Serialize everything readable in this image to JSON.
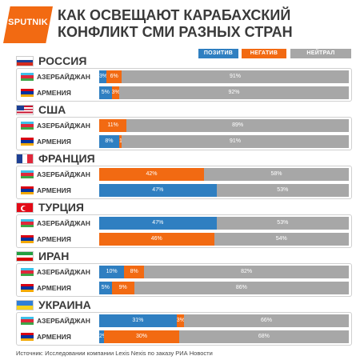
{
  "logo_text": "SPUTNIK",
  "title_line1": "КАК ОСВЕЩАЮТ КАРАБАХСКИЙ",
  "title_line2": "КОНФЛИКТ СМИ РАЗНЫХ СТРАН",
  "source": "Источник: Исследовании компании Lexis Nexis по заказу РИА Новости",
  "colors": {
    "positive": "#2f7fc1",
    "negative": "#f26a12",
    "neutral": "#a7a7a7"
  },
  "chart_data": {
    "type": "bar",
    "orientation": "horizontal",
    "stacked": true,
    "normalized_to": 100,
    "xlim": [
      0,
      100
    ],
    "legend": [
      "ПОЗИТИВ",
      "НЕГАТИВ",
      "НЕЙТРАЛ"
    ],
    "legend_position": "top-right",
    "groups": [
      {
        "name": "РОССИЯ",
        "flag": "russia",
        "rows": [
          {
            "label": "АЗЕРБАЙДЖАН",
            "flag": "azerbaijan",
            "positive": 3,
            "negative": 6,
            "neutral": 91,
            "labels": [
              "3%",
              "6%",
              "91%"
            ]
          },
          {
            "label": "АРМЕНИЯ",
            "flag": "armenia",
            "positive": 5,
            "negative": 3,
            "neutral": 92,
            "labels": [
              "5%",
              "3%",
              "92%"
            ]
          }
        ]
      },
      {
        "name": "США",
        "flag": "usa",
        "rows": [
          {
            "label": "АЗЕРБАЙДЖАН",
            "flag": "azerbaijan",
            "positive": 0,
            "negative": 11,
            "neutral": 89,
            "labels": [
              "",
              "11%",
              "89%"
            ]
          },
          {
            "label": "АРМЕНИЯ",
            "flag": "armenia",
            "positive": 8,
            "negative": 1,
            "neutral": 91,
            "labels": [
              "8%",
              "1%",
              "91%"
            ]
          }
        ]
      },
      {
        "name": "ФРАНЦИЯ",
        "flag": "france",
        "rows": [
          {
            "label": "АЗЕРБАЙДЖАН",
            "flag": "azerbaijan",
            "positive": 0,
            "negative": 42,
            "neutral": 58,
            "labels": [
              "",
              "42%",
              "58%"
            ]
          },
          {
            "label": "АРМЕНИЯ",
            "flag": "armenia",
            "positive": 47,
            "negative": 0,
            "neutral": 53,
            "labels": [
              "47%",
              "",
              "53%"
            ]
          }
        ]
      },
      {
        "name": "ТУРЦИЯ",
        "flag": "turkey",
        "rows": [
          {
            "label": "АЗЕРБАЙДЖАН",
            "flag": "azerbaijan",
            "positive": 47,
            "negative": 0,
            "neutral": 53,
            "labels": [
              "47%",
              "",
              "53%"
            ]
          },
          {
            "label": "АРМЕНИЯ",
            "flag": "armenia",
            "positive": 0,
            "negative": 46,
            "neutral": 54,
            "labels": [
              "",
              "46%",
              "54%"
            ]
          }
        ]
      },
      {
        "name": "ИРАН",
        "flag": "iran",
        "rows": [
          {
            "label": "АЗЕРБАЙДЖАН",
            "flag": "azerbaijan",
            "positive": 10,
            "negative": 8,
            "neutral": 82,
            "labels": [
              "10%",
              "8%",
              "82%"
            ]
          },
          {
            "label": "АРМЕНИЯ",
            "flag": "armenia",
            "positive": 5,
            "negative": 9,
            "neutral": 86,
            "labels": [
              "5%",
              "9%",
              "86%"
            ]
          }
        ]
      },
      {
        "name": "УКРАИНА",
        "flag": "ukraine",
        "rows": [
          {
            "label": "АЗЕРБАЙДЖАН",
            "flag": "azerbaijan",
            "positive": 31,
            "negative": 3,
            "neutral": 66,
            "labels": [
              "31%",
              "3%",
              "66%"
            ]
          },
          {
            "label": "АРМЕНИЯ",
            "flag": "armenia",
            "positive": 2,
            "negative": 30,
            "neutral": 68,
            "labels": [
              "2%",
              "30%",
              "68%"
            ]
          }
        ]
      }
    ]
  }
}
